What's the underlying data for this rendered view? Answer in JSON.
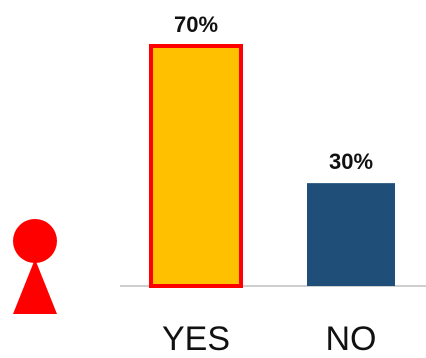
{
  "chart_data": {
    "type": "bar",
    "categories": [
      "YES",
      "NO"
    ],
    "values": [
      70,
      30
    ],
    "value_labels": [
      "70%",
      "30%"
    ],
    "ylim": [
      0,
      70
    ],
    "colors": {
      "yes_fill": "#FFC000",
      "yes_outline": "#FF0000",
      "no_fill": "#1F4E79",
      "axis": "#BFBFBF"
    }
  },
  "icon": {
    "name": "person-icon",
    "color": "#FF0000"
  }
}
